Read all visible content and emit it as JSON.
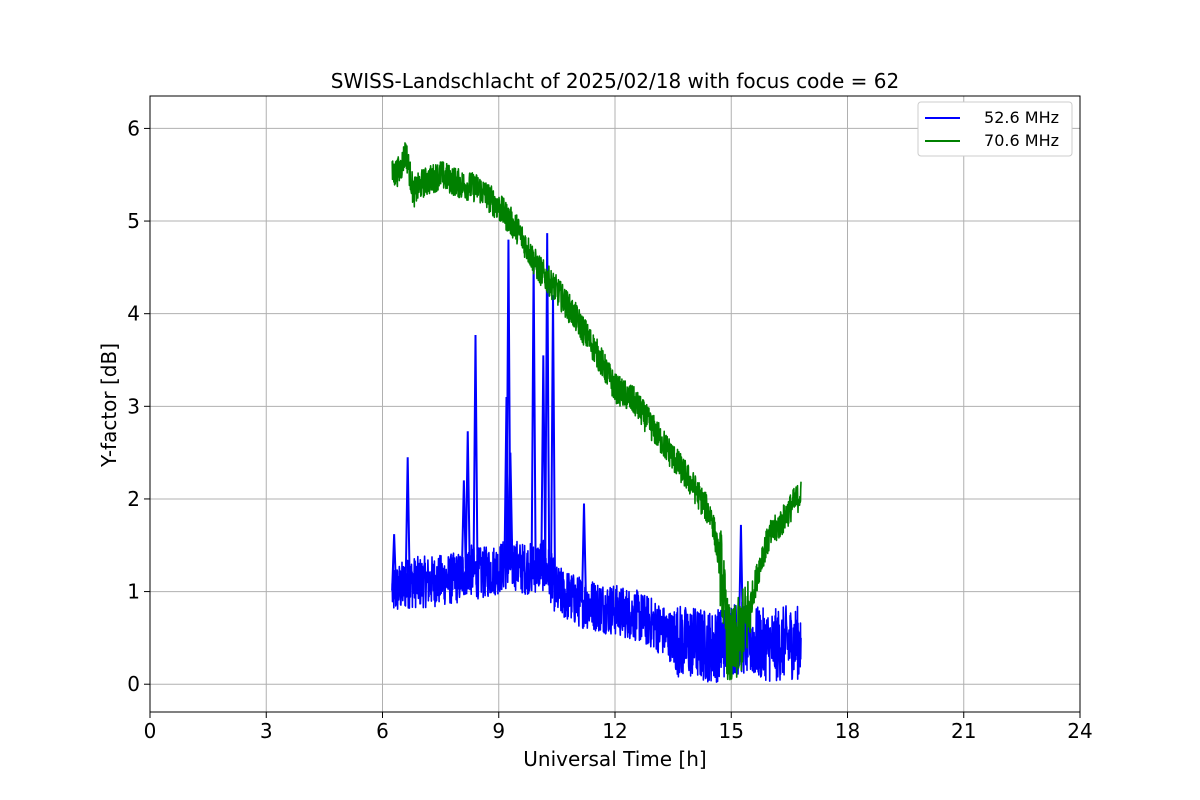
{
  "chart_data": {
    "type": "line",
    "title": "SWISS-Landschlacht of 2025/02/18 with focus code = 62",
    "xlabel": "Universal Time [h]",
    "ylabel": "Y-factor [dB]",
    "xlim": [
      0,
      24
    ],
    "ylim": [
      -0.3,
      6.35
    ],
    "xticks": [
      0,
      3,
      6,
      9,
      12,
      15,
      18,
      21,
      24
    ],
    "yticks": [
      0,
      1,
      2,
      3,
      4,
      5,
      6
    ],
    "grid": true,
    "legend_position": "top-right",
    "series": [
      {
        "name": "52.6 MHz",
        "color": "#0000ff",
        "x": [
          6.25,
          6.5,
          6.7,
          7.0,
          7.5,
          8.0,
          8.2,
          8.4,
          8.6,
          9.0,
          9.2,
          9.4,
          9.6,
          9.9,
          10.1,
          10.3,
          10.5,
          10.8,
          11.0,
          11.5,
          12.0,
          12.5,
          13.0,
          13.5,
          13.8,
          14.0,
          14.5,
          14.8,
          15.0,
          15.3,
          15.6,
          16.0,
          16.4,
          16.8
        ],
        "y": [
          1.0,
          1.05,
          1.1,
          1.1,
          1.12,
          1.15,
          1.25,
          1.2,
          1.2,
          1.25,
          1.3,
          1.3,
          1.25,
          1.25,
          1.3,
          1.2,
          1.0,
          0.95,
          0.9,
          0.85,
          0.8,
          0.75,
          0.65,
          0.5,
          0.45,
          0.45,
          0.4,
          0.45,
          0.5,
          0.5,
          0.45,
          0.4,
          0.45,
          0.45
        ],
        "spikes": [
          {
            "x": 6.3,
            "y": 1.62
          },
          {
            "x": 6.65,
            "y": 2.45
          },
          {
            "x": 8.1,
            "y": 2.2
          },
          {
            "x": 8.2,
            "y": 2.73
          },
          {
            "x": 8.4,
            "y": 3.77
          },
          {
            "x": 9.2,
            "y": 3.1
          },
          {
            "x": 9.25,
            "y": 4.8
          },
          {
            "x": 9.3,
            "y": 2.5
          },
          {
            "x": 9.9,
            "y": 4.55
          },
          {
            "x": 10.15,
            "y": 3.55
          },
          {
            "x": 10.25,
            "y": 4.87
          },
          {
            "x": 10.4,
            "y": 4.2
          },
          {
            "x": 11.2,
            "y": 1.95
          },
          {
            "x": 15.25,
            "y": 1.72
          }
        ]
      },
      {
        "name": "70.6 MHz",
        "color": "#008000",
        "x": [
          6.25,
          6.45,
          6.6,
          6.8,
          7.0,
          7.5,
          8.0,
          8.5,
          9.0,
          9.5,
          10.0,
          10.5,
          11.0,
          11.5,
          12.0,
          12.5,
          13.0,
          13.5,
          14.0,
          14.5,
          14.75,
          14.9,
          15.0,
          15.2,
          15.4,
          15.6,
          15.8,
          16.0,
          16.3,
          16.6,
          16.8
        ],
        "y": [
          5.5,
          5.55,
          5.75,
          5.3,
          5.4,
          5.5,
          5.4,
          5.35,
          5.15,
          4.9,
          4.5,
          4.25,
          3.95,
          3.6,
          3.2,
          3.05,
          2.75,
          2.45,
          2.15,
          1.8,
          1.2,
          0.5,
          0.35,
          0.5,
          0.7,
          1.05,
          1.4,
          1.6,
          1.75,
          1.95,
          2.05
        ]
      }
    ]
  }
}
